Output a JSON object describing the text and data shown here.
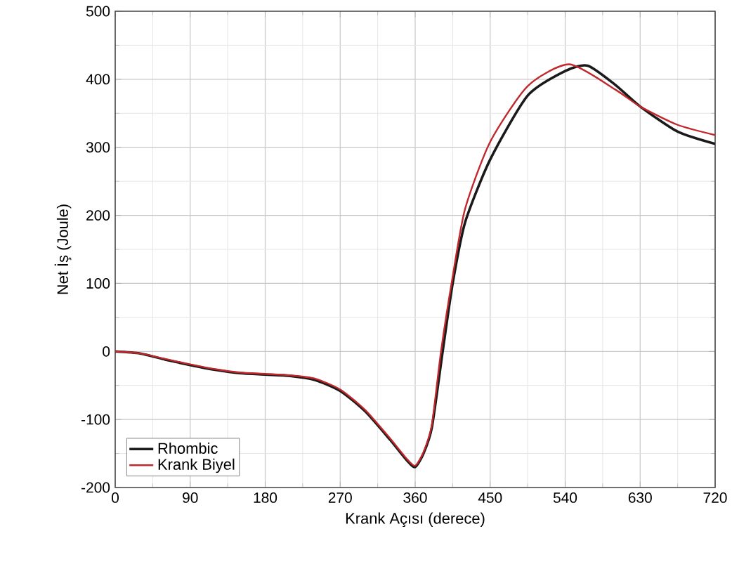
{
  "chart_data": {
    "type": "line",
    "xlabel": "Krank Açısı (derece)",
    "ylabel": "Net İş (Joule)",
    "xlim": [
      0,
      720
    ],
    "ylim": [
      -200,
      500
    ],
    "xticks": [
      0,
      90,
      180,
      270,
      360,
      450,
      540,
      630,
      720
    ],
    "yticks": [
      -200,
      -100,
      0,
      100,
      200,
      300,
      400,
      500
    ],
    "grid": true,
    "legend": "bottom left",
    "line_style": "solid",
    "marker": "none",
    "series": [
      {
        "name": "Rhombic",
        "color": "#1a1a1a",
        "x": [
          0,
          30,
          60,
          90,
          120,
          150,
          180,
          210,
          240,
          270,
          300,
          330,
          350,
          360,
          370,
          380,
          393,
          405,
          420,
          450,
          495,
          540,
          567,
          600,
          630,
          675,
          720
        ],
        "values": [
          0,
          -3,
          -12,
          -20,
          -27,
          -32,
          -34,
          -36,
          -42,
          -58,
          -88,
          -130,
          -160,
          -170,
          -150,
          -112,
          0,
          100,
          190,
          282,
          376,
          412,
          420,
          392,
          360,
          323,
          305
        ]
      },
      {
        "name": "Krank Biyel",
        "color": "#c0282d",
        "x": [
          0,
          30,
          60,
          90,
          120,
          150,
          180,
          210,
          240,
          270,
          300,
          330,
          350,
          360,
          370,
          380,
          391,
          405,
          420,
          450,
          495,
          545,
          600,
          630,
          675,
          720
        ],
        "values": [
          0,
          -3,
          -11,
          -19,
          -26,
          -31,
          -33,
          -35,
          -40,
          -56,
          -86,
          -128,
          -158,
          -168,
          -148,
          -108,
          0,
          110,
          210,
          308,
          390,
          422,
          385,
          360,
          333,
          318
        ]
      }
    ]
  }
}
